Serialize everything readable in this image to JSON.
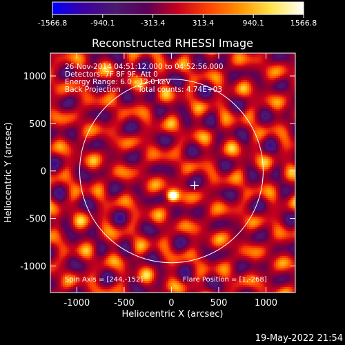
{
  "colorbar": {
    "ticks": [
      "-1566.8",
      "-940.1",
      "-313.4",
      "313.4",
      "940.1",
      "1566.8"
    ],
    "colors": [
      "#0000ff",
      "#3c00a0",
      "#4b1a6e",
      "#5a005a",
      "#c8001e",
      "#ff4600",
      "#ff9600",
      "#ffe650",
      "#ffffff"
    ]
  },
  "chart_data": {
    "type": "heatmap",
    "title": "Reconstructed RHESSI Image",
    "xlabel": "Heliocentric X (arcsec)",
    "ylabel": "Heliocentric Y (arcsec)",
    "xlim": [
      -1280,
      1310
    ],
    "ylim": [
      -1280,
      1240
    ],
    "xticks": [
      "-1000",
      "-500",
      "0",
      "500",
      "1000"
    ],
    "yticks": [
      "-1000",
      "-500",
      "0",
      "500",
      "1000"
    ],
    "xtick_values": [
      -1000,
      -500,
      0,
      500,
      1000
    ],
    "ytick_values": [
      -1000,
      -500,
      0,
      500,
      1000
    ],
    "solar_disk": {
      "center": [
        0,
        0
      ],
      "radius_arcsec": 970
    },
    "flare_marker": [
      244,
      -152
    ],
    "bright_source": [
      0,
      -250
    ],
    "annotations": {
      "time_range": "26-Nov-2014 04:51:12.000 to 04:52:56.000",
      "detectors": "Detectors: 7F 8F 9F, Att 0",
      "energy_range": "Energy Range: 6.0 - 12.0 keV",
      "method": "Back Projection",
      "total_counts": "Total counts: 4.74E+03",
      "spin_axis": "Spin Axis = [244,-152]",
      "flare_position": "Flare Position = [1,-268]"
    }
  },
  "footer": {
    "timestamp": "19-May-2022 21:54"
  }
}
